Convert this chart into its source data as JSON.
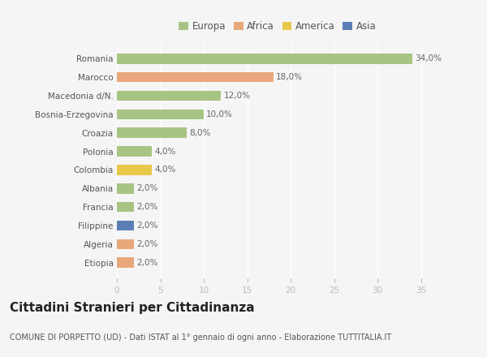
{
  "countries": [
    "Romania",
    "Marocco",
    "Macedonia d/N.",
    "Bosnia-Erzegovina",
    "Croazia",
    "Polonia",
    "Colombia",
    "Albania",
    "Francia",
    "Filippine",
    "Algeria",
    "Etiopia"
  ],
  "values": [
    34.0,
    18.0,
    12.0,
    10.0,
    8.0,
    4.0,
    4.0,
    2.0,
    2.0,
    2.0,
    2.0,
    2.0
  ],
  "colors": [
    "#a8c484",
    "#e8a87c",
    "#a8c484",
    "#a8c484",
    "#a8c484",
    "#a8c484",
    "#e8c84a",
    "#a8c484",
    "#a8c484",
    "#5b7fb5",
    "#e8a87c",
    "#e8a87c"
  ],
  "legend_labels": [
    "Europa",
    "Africa",
    "America",
    "Asia"
  ],
  "legend_colors": [
    "#a8c484",
    "#e8a87c",
    "#e8c84a",
    "#5b7fb5"
  ],
  "xlim": [
    0,
    37
  ],
  "xticks": [
    0,
    5,
    10,
    15,
    20,
    25,
    30,
    35
  ],
  "title": "Cittadini Stranieri per Cittadinanza",
  "subtitle": "COMUNE DI PORPETTO (UD) - Dati ISTAT al 1° gennaio di ogni anno - Elaborazione TUTTITALIA.IT",
  "bg_color": "#f5f5f5",
  "grid_color": "#ffffff",
  "bar_height": 0.55,
  "label_fontsize": 7.5,
  "title_fontsize": 11,
  "subtitle_fontsize": 7,
  "tick_fontsize": 7.5,
  "legend_fontsize": 8.5
}
